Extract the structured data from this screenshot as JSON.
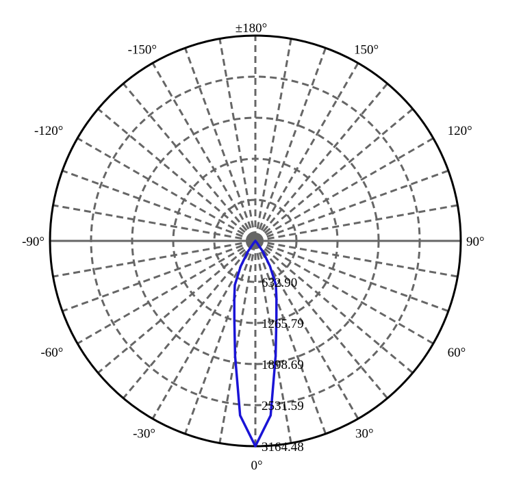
{
  "chart_data": {
    "type": "polar",
    "title": "",
    "angle_labels": [
      {
        "angle": 0,
        "label": "0°"
      },
      {
        "angle": 30,
        "label": "30°"
      },
      {
        "angle": 60,
        "label": "60°"
      },
      {
        "angle": 90,
        "label": "90°"
      },
      {
        "angle": 120,
        "label": "120°"
      },
      {
        "angle": 150,
        "label": "150°"
      },
      {
        "angle": 180,
        "label": "±180°"
      },
      {
        "angle": -150,
        "label": "-150°"
      },
      {
        "angle": -120,
        "label": "-120°"
      },
      {
        "angle": -90,
        "label": "-90°"
      },
      {
        "angle": -60,
        "label": "-60°"
      },
      {
        "angle": -30,
        "label": "-30°"
      }
    ],
    "radial_ticks": [
      {
        "value": 632.9,
        "label": "632.90"
      },
      {
        "value": 1265.79,
        "label": "1265.79"
      },
      {
        "value": 1898.69,
        "label": "1898.69"
      },
      {
        "value": 2531.59,
        "label": "2531.59"
      },
      {
        "value": 3164.48,
        "label": "3164.48"
      }
    ],
    "rmax": 3164.48,
    "spoke_step_deg": 10,
    "grid": true,
    "series": [
      {
        "color": "#1a14d6",
        "angles": [
          0,
          5,
          10,
          15,
          20,
          25,
          30,
          35,
          40,
          45,
          90,
          180
        ],
        "values": [
          3164.48,
          2700,
          1800,
          1250,
          950,
          750,
          450,
          200,
          40,
          0,
          0,
          0
        ]
      }
    ]
  }
}
